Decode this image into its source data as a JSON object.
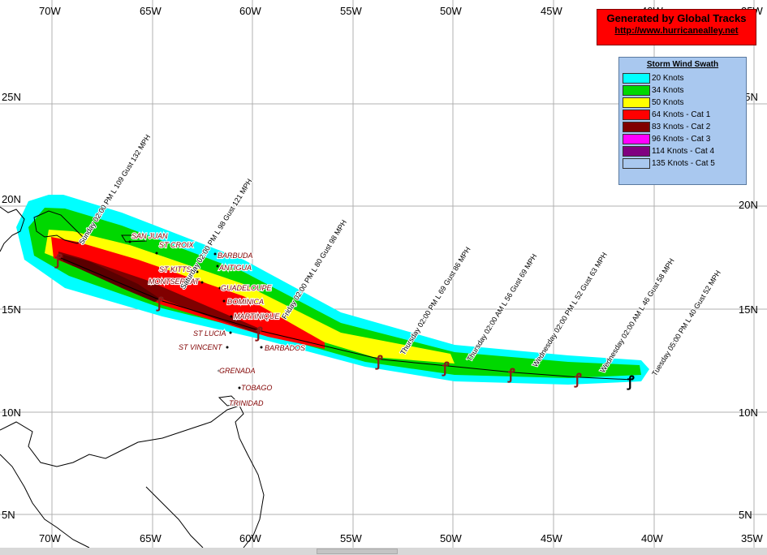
{
  "credit": {
    "title": "Generated by Global Tracks",
    "link": "http://www.hurricanealley.net"
  },
  "legend": {
    "title": "Storm Wind Swath",
    "items": [
      {
        "label": "20 Knots",
        "color": "#00ffff"
      },
      {
        "label": "34 Knots",
        "color": "#00d800"
      },
      {
        "label": "50 Knots",
        "color": "#ffff00"
      },
      {
        "label": "64 Knots - Cat 1",
        "color": "#ff0000"
      },
      {
        "label": "83 Knots - Cat 2",
        "color": "#800000"
      },
      {
        "label": "96 Knots - Cat 3",
        "color": "#ff00ff"
      },
      {
        "label": "114 Knots - Cat 4",
        "color": "#800080"
      },
      {
        "label": "135 Knots - Cat 5",
        "color": "#a9c8ef"
      }
    ]
  },
  "grid": {
    "lon_labels_top": [
      "70W",
      "65W",
      "60W",
      "55W",
      "50W",
      "45W",
      "40W",
      "35W"
    ],
    "lon_labels_bottom": [
      "70W",
      "65W",
      "60W",
      "55W",
      "50W",
      "45W",
      "40W",
      "35W"
    ],
    "lat_labels_left": [
      "25N",
      "20N",
      "15N",
      "10N",
      "5N"
    ],
    "lat_labels_right": [
      "25N",
      "20N",
      "15N",
      "10N",
      "5N"
    ]
  },
  "places": [
    {
      "name": "SAN JUAN"
    },
    {
      "name": "ST CROIX"
    },
    {
      "name": "BARBUDA"
    },
    {
      "name": "ANTIGUA"
    },
    {
      "name": "ST KITTS"
    },
    {
      "name": "MONTSERRAT"
    },
    {
      "name": "GUADELOUPE"
    },
    {
      "name": "DOMINICA"
    },
    {
      "name": "MARTINIQUE"
    },
    {
      "name": "ST LUCIA"
    },
    {
      "name": "ST VINCENT"
    },
    {
      "name": "BARBADOS"
    },
    {
      "name": "GRENADA"
    },
    {
      "name": "TOBAGO"
    },
    {
      "name": "TRINIDAD"
    }
  ],
  "forecast_labels": [
    "Sunday 02:00 PM L 109 Gust 132 MPH",
    "Saturday 02:00 PM L 98 Gust 121 MPH",
    "Friday 02:00 PM L 80 Gust 98 MPH",
    "Thursday 02:00 PM L 69 Gust 86 MPH",
    "Thursday 02:00 AM L 56 Gust 69 MPH",
    "Wednesday 02:00 PM L 52 Gust 63 MPH",
    "Wednesday 02:00 AM L 46 Gust 58 MPH",
    "Tuesday 05:00 PM L 40 Gust 52 MPH"
  ],
  "colors": {
    "grid": "#b0b0b0",
    "coast": "#000000",
    "track": "#000000",
    "hurricane_symbol": "#8b1a1a",
    "place_text": "#800000"
  }
}
